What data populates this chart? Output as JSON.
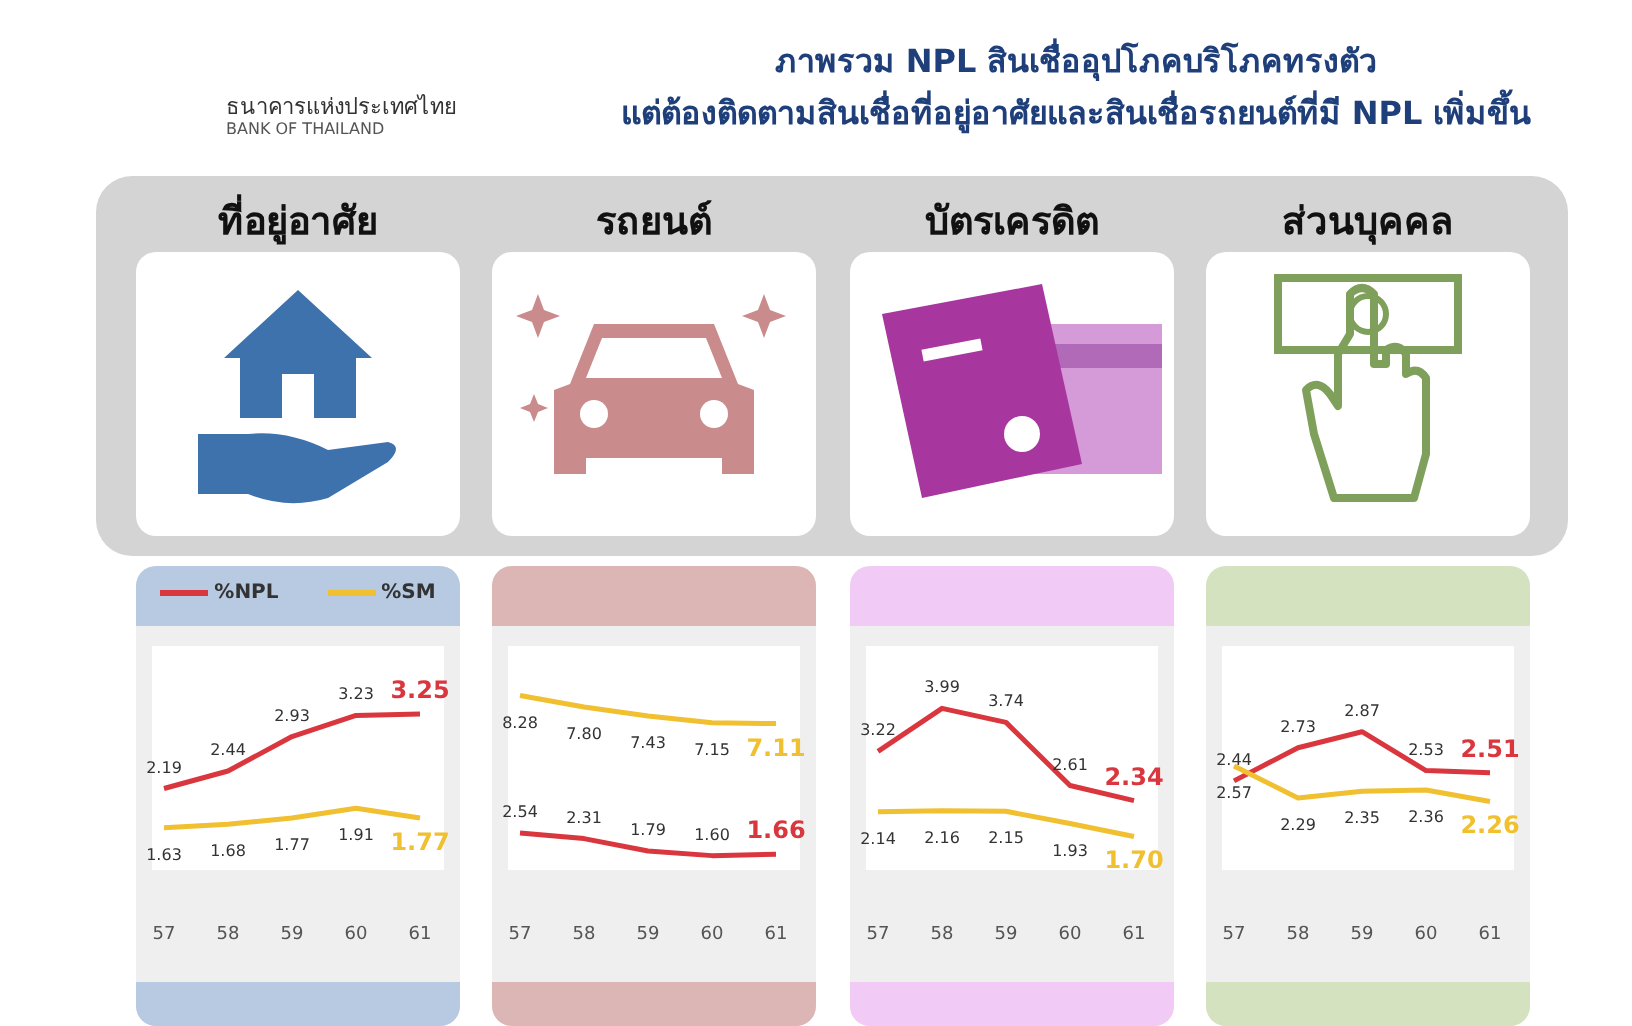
{
  "chart_data": [
    {
      "type": "line",
      "title": "ที่อยู่อาศัย",
      "annotations": [
        "ธนาคารแห่งประเทศไทย",
        "BANK OF THAILAND",
        "ภาพรวม NPL สินเชื่ออุปโภคบริโภคทรงตัว",
        "แต่ต้องติดตามสินเชื่อที่อยู่อาศัยและสินเชื่อรถยนต์ที่มี NPL เพิ่มขึ้น"
      ],
      "categories": [
        "57",
        "58",
        "59",
        "60",
        "61"
      ],
      "series": [
        {
          "name": "%NPL",
          "color": "#d9363e",
          "values": [
            2.19,
            2.44,
            2.93,
            3.23,
            3.25
          ],
          "value_labels": [
            "2.19",
            "2.44",
            "2.93",
            "3.23",
            "3.25"
          ]
        },
        {
          "name": "%SM",
          "color": "#f0c030",
          "values": [
            1.63,
            1.68,
            1.77,
            1.91,
            1.77
          ],
          "value_labels": [
            "1.63",
            "1.68",
            "1.77",
            "1.91",
            "1.77"
          ]
        }
      ],
      "legend": "top",
      "marker": "none"
    },
    {
      "type": "line",
      "title": "รถยนต์",
      "categories": [
        "57",
        "58",
        "59",
        "60",
        "61"
      ],
      "series": [
        {
          "color": "#d9363e",
          "values": [
            2.54,
            2.31,
            1.79,
            1.6,
            1.66
          ],
          "value_labels": [
            "2.54",
            "2.31",
            "1.79",
            "1.60",
            "1.66"
          ]
        },
        {
          "color": "#f0c030",
          "values": [
            8.28,
            7.8,
            7.43,
            7.15,
            7.11
          ],
          "value_labels": [
            "8.28",
            "7.80",
            "7.43",
            "7.15",
            "7.11"
          ]
        }
      ],
      "marker": "none"
    },
    {
      "type": "line",
      "title": "บัตรเครดิต",
      "categories": [
        "57",
        "58",
        "59",
        "60",
        "61"
      ],
      "series": [
        {
          "color": "#d9363e",
          "values": [
            3.22,
            3.99,
            3.74,
            2.61,
            2.34
          ],
          "value_labels": [
            "3.22",
            "3.99",
            "3.74",
            "2.61",
            "2.34"
          ]
        },
        {
          "color": "#f0c030",
          "values": [
            2.14,
            2.16,
            2.15,
            1.93,
            1.7
          ],
          "value_labels": [
            "2.14",
            "2.16",
            "2.15",
            "1.93",
            "1.70"
          ]
        }
      ],
      "marker": "none"
    },
    {
      "type": "line",
      "title": "ส่วนบุคคล",
      "categories": [
        "57",
        "58",
        "59",
        "60",
        "61"
      ],
      "series": [
        {
          "color": "#d9363e",
          "values": [
            2.44,
            2.73,
            2.87,
            2.53,
            2.51
          ],
          "value_labels": [
            "2.44",
            "2.73",
            "2.87",
            "2.53",
            "2.51"
          ]
        },
        {
          "color": "#f0c030",
          "values": [
            2.57,
            2.29,
            2.35,
            2.36,
            2.26
          ],
          "value_labels": [
            "2.57",
            "2.29",
            "2.35",
            "2.36",
            "2.26"
          ]
        }
      ],
      "marker": "none"
    }
  ]
}
